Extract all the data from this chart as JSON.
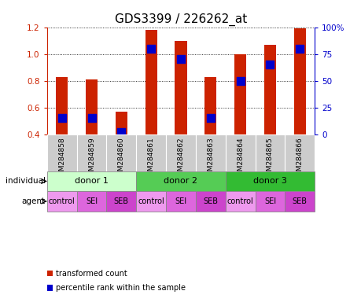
{
  "title": "GDS3399 / 226262_at",
  "samples": [
    "GSM284858",
    "GSM284859",
    "GSM284860",
    "GSM284861",
    "GSM284862",
    "GSM284863",
    "GSM284864",
    "GSM284865",
    "GSM284866"
  ],
  "bar_heights": [
    0.83,
    0.81,
    0.57,
    1.18,
    1.1,
    0.83,
    1.0,
    1.07,
    1.19
  ],
  "percentile_ranks": [
    15,
    15,
    2,
    80,
    70,
    15,
    50,
    65,
    80
  ],
  "bar_color": "#cc2200",
  "dot_color": "#0000cc",
  "ylim": [
    0.4,
    1.2
  ],
  "y_ticks_left": [
    0.4,
    0.6,
    0.8,
    1.0,
    1.2
  ],
  "y_ticks_right": [
    0,
    25,
    50,
    75,
    100
  ],
  "bar_width": 0.4,
  "dot_size": 50,
  "individuals": [
    {
      "label": "donor 1",
      "start": 0,
      "end": 3,
      "color": "#ccffcc"
    },
    {
      "label": "donor 2",
      "start": 3,
      "end": 6,
      "color": "#55cc55"
    },
    {
      "label": "donor 3",
      "start": 6,
      "end": 9,
      "color": "#33bb33"
    }
  ],
  "agents": [
    "control",
    "SEI",
    "SEB",
    "control",
    "SEI",
    "SEB",
    "control",
    "SEI",
    "SEB"
  ],
  "agent_colors": [
    "#ee99ee",
    "#dd66dd",
    "#cc44cc",
    "#ee99ee",
    "#dd66dd",
    "#cc44cc",
    "#ee99ee",
    "#dd66dd",
    "#cc44cc"
  ],
  "sample_bg_color": "#cccccc",
  "legend_entries": [
    {
      "color": "#cc2200",
      "label": "transformed count"
    },
    {
      "color": "#0000cc",
      "label": "percentile rank within the sample"
    }
  ],
  "individual_label": "individual",
  "agent_label": "agent",
  "left_tick_color": "#cc2200",
  "right_tick_color": "#0000cc",
  "title_fontsize": 11,
  "axis_fontsize": 8,
  "tick_fontsize": 7.5
}
